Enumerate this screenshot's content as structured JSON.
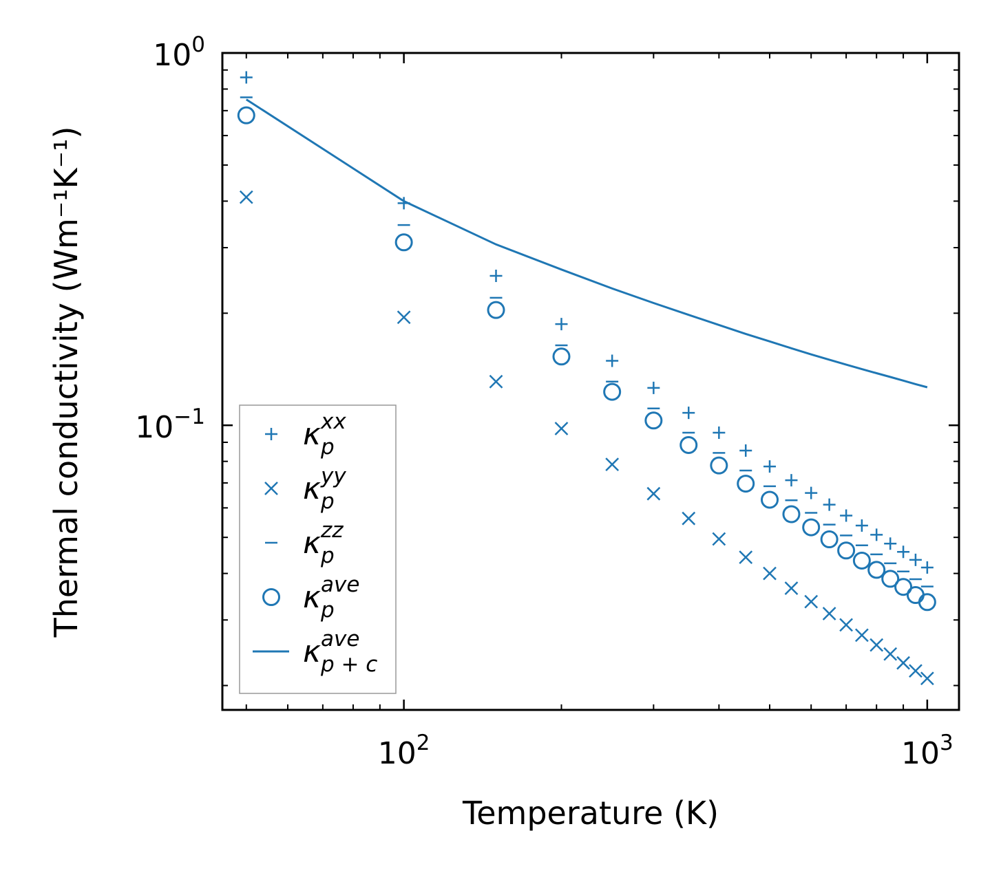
{
  "chart_data": {
    "type": "scatter",
    "title": "",
    "xlabel": "Temperature (K)",
    "ylabel": "Thermal conductivity (Wm⁻¹K⁻¹)",
    "xscale": "log",
    "yscale": "log",
    "xlim": [
      45,
      1150
    ],
    "ylim": [
      0.0172,
      1.0
    ],
    "grid": false,
    "legend_position": "lower-left",
    "color": "#1f77b4",
    "x_ticks": [
      {
        "base": "10",
        "exp": "2",
        "value": 100
      },
      {
        "base": "10",
        "exp": "3",
        "value": 1000
      }
    ],
    "y_ticks": [
      {
        "base": "10",
        "exp": "−1",
        "value": 0.1
      },
      {
        "base": "10",
        "exp": "0",
        "value": 1.0
      }
    ],
    "x": [
      50,
      100,
      150,
      200,
      250,
      300,
      350,
      400,
      450,
      500,
      550,
      600,
      650,
      700,
      750,
      800,
      850,
      900,
      950,
      1000
    ],
    "series": [
      {
        "name": "xx",
        "label": "κ",
        "sub": "p",
        "sup": "xx",
        "marker": "plus",
        "values": [
          0.86,
          0.395,
          0.252,
          0.187,
          0.149,
          0.126,
          0.108,
          0.0955,
          0.0855,
          0.0775,
          0.0712,
          0.0658,
          0.0612,
          0.0572,
          0.0538,
          0.0508,
          0.0481,
          0.0457,
          0.0435,
          0.0415
        ]
      },
      {
        "name": "yy",
        "label": "κ",
        "sub": "p",
        "sup": "yy",
        "marker": "x",
        "values": [
          0.41,
          0.195,
          0.131,
          0.098,
          0.0785,
          0.0655,
          0.0562,
          0.0495,
          0.0442,
          0.04,
          0.0365,
          0.0336,
          0.0312,
          0.0291,
          0.0273,
          0.0257,
          0.0243,
          0.023,
          0.0219,
          0.0209
        ]
      },
      {
        "name": "zz",
        "label": "κ",
        "sub": "p",
        "sup": "zz",
        "marker": "hline",
        "values": [
          0.76,
          0.345,
          0.22,
          0.164,
          0.131,
          0.111,
          0.0955,
          0.0843,
          0.0756,
          0.0686,
          0.0629,
          0.0582,
          0.0541,
          0.0506,
          0.0476,
          0.045,
          0.0426,
          0.0405,
          0.0386,
          0.0369
        ]
      },
      {
        "name": "ave",
        "label": "κ",
        "sub": "p",
        "sup": "ave",
        "marker": "circle",
        "values": [
          0.68,
          0.31,
          0.204,
          0.153,
          0.123,
          0.103,
          0.0885,
          0.078,
          0.0697,
          0.0631,
          0.0577,
          0.0532,
          0.0494,
          0.0461,
          0.0433,
          0.0409,
          0.0387,
          0.0368,
          0.035,
          0.0335
        ]
      },
      {
        "name": "ave_pc",
        "label": "κ",
        "sub": "p + c",
        "sup": "ave",
        "marker": "line",
        "values": [
          0.75,
          0.4,
          0.306,
          0.262,
          0.233,
          0.213,
          0.198,
          0.186,
          0.176,
          0.168,
          0.161,
          0.155,
          0.15,
          0.1455,
          0.1415,
          0.138,
          0.1348,
          0.1318,
          0.129,
          0.1265
        ]
      }
    ]
  }
}
